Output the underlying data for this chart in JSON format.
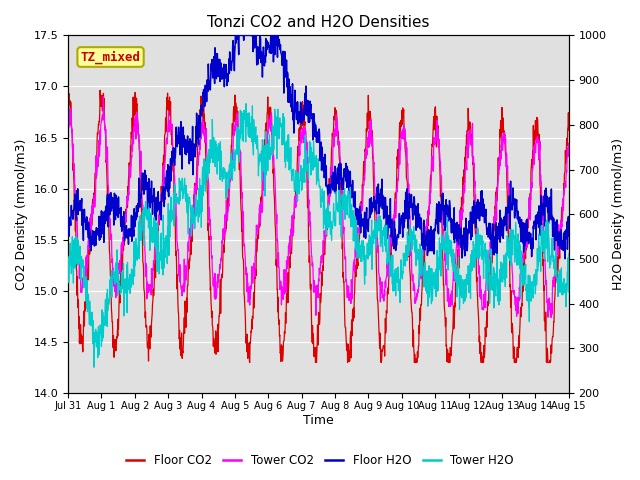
{
  "title": "Tonzi CO2 and H2O Densities",
  "xlabel": "Time",
  "ylabel_left": "CO2 Density (mmol/m3)",
  "ylabel_right": "H2O Density (mmol/m3)",
  "ylim_left": [
    14.0,
    17.5
  ],
  "ylim_right": [
    200,
    1000
  ],
  "yticks_left": [
    14.0,
    14.5,
    15.0,
    15.5,
    16.0,
    16.5,
    17.0,
    17.5
  ],
  "yticks_right": [
    200,
    300,
    400,
    500,
    600,
    700,
    800,
    900,
    1000
  ],
  "xtick_labels": [
    "Jul 31",
    "Aug 1",
    "Aug 2",
    "Aug 3",
    "Aug 4",
    "Aug 5",
    "Aug 6",
    "Aug 7",
    "Aug 8",
    "Aug 9",
    "Aug 10",
    "Aug 11",
    "Aug 12",
    "Aug 13",
    "Aug 14",
    "Aug 15"
  ],
  "colors": {
    "floor_co2": "#dd0000",
    "tower_co2": "#ff00ff",
    "floor_h2o": "#0000cc",
    "tower_h2o": "#00cccc"
  },
  "legend_labels": [
    "Floor CO2",
    "Tower CO2",
    "Floor H2O",
    "Tower H2O"
  ],
  "annotation_text": "TZ_mixed",
  "annotation_color": "#cc0000",
  "annotation_bg": "#ffff99",
  "annotation_border": "#aaaa00",
  "plot_bg": "#e0e0e0",
  "fig_bg": "#ffffff",
  "n_points": 1500,
  "seed": 7
}
